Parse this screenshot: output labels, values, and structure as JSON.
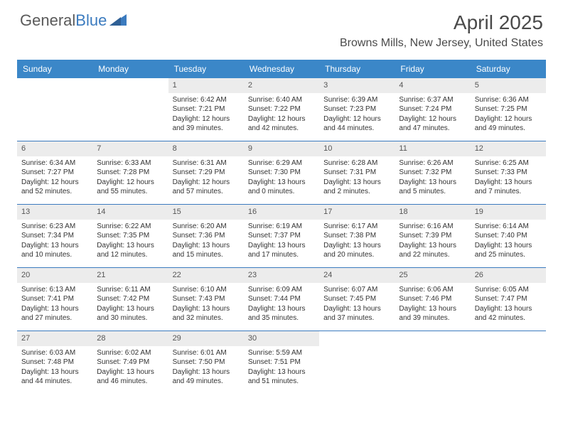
{
  "brand": {
    "part1": "General",
    "part2": "Blue"
  },
  "title": "April 2025",
  "location": "Browns Mills, New Jersey, United States",
  "colors": {
    "header_bg": "#3b87c8",
    "header_text": "#ffffff",
    "daynum_bg": "#ececec",
    "rule": "#3b7bbf",
    "body_text": "#333333"
  },
  "weekdays": [
    "Sunday",
    "Monday",
    "Tuesday",
    "Wednesday",
    "Thursday",
    "Friday",
    "Saturday"
  ],
  "calendar": {
    "first_weekday_index": 2,
    "days": [
      {
        "n": 1,
        "sunrise": "6:42 AM",
        "sunset": "7:21 PM",
        "daylight": "12 hours and 39 minutes."
      },
      {
        "n": 2,
        "sunrise": "6:40 AM",
        "sunset": "7:22 PM",
        "daylight": "12 hours and 42 minutes."
      },
      {
        "n": 3,
        "sunrise": "6:39 AM",
        "sunset": "7:23 PM",
        "daylight": "12 hours and 44 minutes."
      },
      {
        "n": 4,
        "sunrise": "6:37 AM",
        "sunset": "7:24 PM",
        "daylight": "12 hours and 47 minutes."
      },
      {
        "n": 5,
        "sunrise": "6:36 AM",
        "sunset": "7:25 PM",
        "daylight": "12 hours and 49 minutes."
      },
      {
        "n": 6,
        "sunrise": "6:34 AM",
        "sunset": "7:27 PM",
        "daylight": "12 hours and 52 minutes."
      },
      {
        "n": 7,
        "sunrise": "6:33 AM",
        "sunset": "7:28 PM",
        "daylight": "12 hours and 55 minutes."
      },
      {
        "n": 8,
        "sunrise": "6:31 AM",
        "sunset": "7:29 PM",
        "daylight": "12 hours and 57 minutes."
      },
      {
        "n": 9,
        "sunrise": "6:29 AM",
        "sunset": "7:30 PM",
        "daylight": "13 hours and 0 minutes."
      },
      {
        "n": 10,
        "sunrise": "6:28 AM",
        "sunset": "7:31 PM",
        "daylight": "13 hours and 2 minutes."
      },
      {
        "n": 11,
        "sunrise": "6:26 AM",
        "sunset": "7:32 PM",
        "daylight": "13 hours and 5 minutes."
      },
      {
        "n": 12,
        "sunrise": "6:25 AM",
        "sunset": "7:33 PM",
        "daylight": "13 hours and 7 minutes."
      },
      {
        "n": 13,
        "sunrise": "6:23 AM",
        "sunset": "7:34 PM",
        "daylight": "13 hours and 10 minutes."
      },
      {
        "n": 14,
        "sunrise": "6:22 AM",
        "sunset": "7:35 PM",
        "daylight": "13 hours and 12 minutes."
      },
      {
        "n": 15,
        "sunrise": "6:20 AM",
        "sunset": "7:36 PM",
        "daylight": "13 hours and 15 minutes."
      },
      {
        "n": 16,
        "sunrise": "6:19 AM",
        "sunset": "7:37 PM",
        "daylight": "13 hours and 17 minutes."
      },
      {
        "n": 17,
        "sunrise": "6:17 AM",
        "sunset": "7:38 PM",
        "daylight": "13 hours and 20 minutes."
      },
      {
        "n": 18,
        "sunrise": "6:16 AM",
        "sunset": "7:39 PM",
        "daylight": "13 hours and 22 minutes."
      },
      {
        "n": 19,
        "sunrise": "6:14 AM",
        "sunset": "7:40 PM",
        "daylight": "13 hours and 25 minutes."
      },
      {
        "n": 20,
        "sunrise": "6:13 AM",
        "sunset": "7:41 PM",
        "daylight": "13 hours and 27 minutes."
      },
      {
        "n": 21,
        "sunrise": "6:11 AM",
        "sunset": "7:42 PM",
        "daylight": "13 hours and 30 minutes."
      },
      {
        "n": 22,
        "sunrise": "6:10 AM",
        "sunset": "7:43 PM",
        "daylight": "13 hours and 32 minutes."
      },
      {
        "n": 23,
        "sunrise": "6:09 AM",
        "sunset": "7:44 PM",
        "daylight": "13 hours and 35 minutes."
      },
      {
        "n": 24,
        "sunrise": "6:07 AM",
        "sunset": "7:45 PM",
        "daylight": "13 hours and 37 minutes."
      },
      {
        "n": 25,
        "sunrise": "6:06 AM",
        "sunset": "7:46 PM",
        "daylight": "13 hours and 39 minutes."
      },
      {
        "n": 26,
        "sunrise": "6:05 AM",
        "sunset": "7:47 PM",
        "daylight": "13 hours and 42 minutes."
      },
      {
        "n": 27,
        "sunrise": "6:03 AM",
        "sunset": "7:48 PM",
        "daylight": "13 hours and 44 minutes."
      },
      {
        "n": 28,
        "sunrise": "6:02 AM",
        "sunset": "7:49 PM",
        "daylight": "13 hours and 46 minutes."
      },
      {
        "n": 29,
        "sunrise": "6:01 AM",
        "sunset": "7:50 PM",
        "daylight": "13 hours and 49 minutes."
      },
      {
        "n": 30,
        "sunrise": "5:59 AM",
        "sunset": "7:51 PM",
        "daylight": "13 hours and 51 minutes."
      }
    ]
  },
  "labels": {
    "sunrise": "Sunrise:",
    "sunset": "Sunset:",
    "daylight": "Daylight:"
  }
}
